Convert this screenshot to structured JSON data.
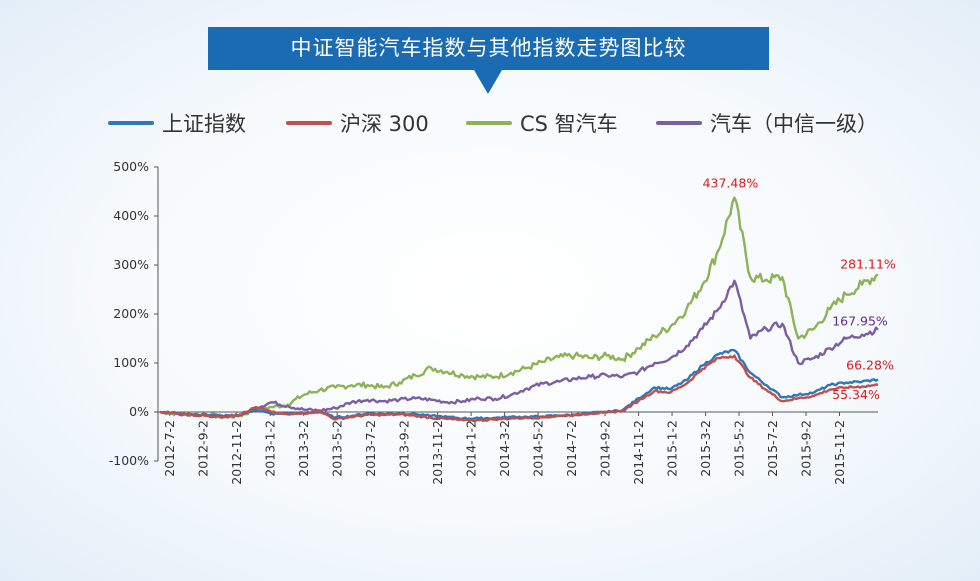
{
  "header": {
    "title": "中证智能汽车指数与其他指数走势图比较"
  },
  "colors": {
    "banner": "#1b6bb3",
    "axis": "#555555",
    "text": "#333333",
    "series": [
      "#2f77b5",
      "#c0504d",
      "#8fb256",
      "#7b5fa3"
    ]
  },
  "chart_data": {
    "type": "line",
    "title": "中证智能汽车指数与其他指数走势图比较",
    "xlabel": "",
    "ylabel": "",
    "ylim": [
      -100,
      500
    ],
    "yticks": [
      "500%",
      "400%",
      "300%",
      "200%",
      "100%",
      "0%",
      "-100%"
    ],
    "ytick_values": [
      500,
      400,
      300,
      200,
      100,
      0,
      -100
    ],
    "xticks": [
      "2012-7-2",
      "2012-9-2",
      "2012-11-2",
      "2013-1-2",
      "2013-3-2",
      "2013-5-2",
      "2013-7-2",
      "2013-9-2",
      "2013-11-2",
      "2014-1-2",
      "2014-3-2",
      "2014-5-2",
      "2014-7-2",
      "2014-9-2",
      "2014-11-2",
      "2015-1-2",
      "2015-3-2",
      "2015-5-2",
      "2015-7-2",
      "2015-9-2",
      "2015-11-2"
    ],
    "grid": false,
    "legend_position": "top",
    "series": [
      {
        "name": "上证指数",
        "points": [
          [
            0,
            0
          ],
          [
            1,
            -2
          ],
          [
            2,
            -5
          ],
          [
            3,
            -7
          ],
          [
            4,
            -9
          ],
          [
            5,
            -6
          ],
          [
            6,
            4
          ],
          [
            7,
            -4
          ],
          [
            8,
            -3
          ],
          [
            9,
            -2
          ],
          [
            10,
            0
          ],
          [
            11,
            -11
          ],
          [
            12,
            -8
          ],
          [
            13,
            -3
          ],
          [
            14,
            -4
          ],
          [
            15,
            -3
          ],
          [
            16,
            -4
          ],
          [
            17,
            -8
          ],
          [
            18,
            -10
          ],
          [
            19,
            -13
          ],
          [
            20,
            -13
          ],
          [
            21,
            -12
          ],
          [
            22,
            -10
          ],
          [
            23,
            -10
          ],
          [
            24,
            -9
          ],
          [
            25,
            -7
          ],
          [
            26,
            -6
          ],
          [
            27,
            -2
          ],
          [
            28,
            0
          ],
          [
            29,
            4
          ],
          [
            30,
            28
          ],
          [
            31,
            50
          ],
          [
            32,
            47
          ],
          [
            33,
            65
          ],
          [
            34,
            95
          ],
          [
            35,
            118
          ],
          [
            36,
            126
          ],
          [
            37,
            80
          ],
          [
            38,
            55
          ],
          [
            39,
            30
          ],
          [
            40,
            35
          ],
          [
            41,
            40
          ],
          [
            42,
            55
          ],
          [
            43,
            60
          ],
          [
            44,
            62
          ],
          [
            45,
            66.28
          ]
        ]
      },
      {
        "name": "沪深 300",
        "points": [
          [
            0,
            0
          ],
          [
            1,
            -3
          ],
          [
            2,
            -6
          ],
          [
            3,
            -8
          ],
          [
            4,
            -10
          ],
          [
            5,
            -5
          ],
          [
            6,
            10
          ],
          [
            7,
            0
          ],
          [
            8,
            -5
          ],
          [
            9,
            -3
          ],
          [
            10,
            2
          ],
          [
            11,
            -15
          ],
          [
            12,
            -10
          ],
          [
            13,
            -6
          ],
          [
            14,
            -6
          ],
          [
            15,
            -5
          ],
          [
            16,
            -8
          ],
          [
            17,
            -12
          ],
          [
            18,
            -14
          ],
          [
            19,
            -17
          ],
          [
            20,
            -17
          ],
          [
            21,
            -15
          ],
          [
            22,
            -13
          ],
          [
            23,
            -12
          ],
          [
            24,
            -11
          ],
          [
            25,
            -8
          ],
          [
            26,
            -6
          ],
          [
            27,
            -3
          ],
          [
            28,
            -1
          ],
          [
            29,
            2
          ],
          [
            30,
            23
          ],
          [
            31,
            43
          ],
          [
            32,
            40
          ],
          [
            33,
            58
          ],
          [
            34,
            88
          ],
          [
            35,
            110
          ],
          [
            36,
            115
          ],
          [
            37,
            70
          ],
          [
            38,
            45
          ],
          [
            39,
            22
          ],
          [
            40,
            28
          ],
          [
            41,
            33
          ],
          [
            42,
            46
          ],
          [
            43,
            50
          ],
          [
            44,
            52
          ],
          [
            45,
            55.34
          ]
        ]
      },
      {
        "name": "CS 智汽车",
        "points": [
          [
            0,
            0
          ],
          [
            1,
            -3
          ],
          [
            2,
            -5
          ],
          [
            3,
            -6
          ],
          [
            4,
            -10
          ],
          [
            5,
            -8
          ],
          [
            6,
            5
          ],
          [
            7,
            10
          ],
          [
            8,
            15
          ],
          [
            9,
            35
          ],
          [
            10,
            45
          ],
          [
            11,
            50
          ],
          [
            12,
            55
          ],
          [
            13,
            55
          ],
          [
            14,
            50
          ],
          [
            15,
            60
          ],
          [
            16,
            75
          ],
          [
            17,
            90
          ],
          [
            18,
            82
          ],
          [
            19,
            75
          ],
          [
            20,
            72
          ],
          [
            21,
            72
          ],
          [
            22,
            80
          ],
          [
            23,
            90
          ],
          [
            24,
            102
          ],
          [
            25,
            112
          ],
          [
            26,
            115
          ],
          [
            27,
            110
          ],
          [
            28,
            115
          ],
          [
            29,
            108
          ],
          [
            30,
            130
          ],
          [
            31,
            155
          ],
          [
            32,
            175
          ],
          [
            33,
            210
          ],
          [
            34,
            260
          ],
          [
            35,
            330
          ],
          [
            36,
            437.48
          ],
          [
            37,
            275
          ],
          [
            38,
            270
          ],
          [
            39,
            275
          ],
          [
            40,
            150
          ],
          [
            41,
            170
          ],
          [
            42,
            210
          ],
          [
            43,
            240
          ],
          [
            44,
            260
          ],
          [
            45,
            281.11
          ]
        ]
      },
      {
        "name": "汽车（中信一级）",
        "points": [
          [
            0,
            0
          ],
          [
            1,
            -3
          ],
          [
            2,
            -5
          ],
          [
            3,
            -7
          ],
          [
            4,
            -9
          ],
          [
            5,
            -6
          ],
          [
            6,
            8
          ],
          [
            7,
            20
          ],
          [
            8,
            12
          ],
          [
            9,
            5
          ],
          [
            10,
            3
          ],
          [
            11,
            8
          ],
          [
            12,
            20
          ],
          [
            13,
            25
          ],
          [
            14,
            22
          ],
          [
            15,
            25
          ],
          [
            16,
            28
          ],
          [
            17,
            25
          ],
          [
            18,
            20
          ],
          [
            19,
            22
          ],
          [
            20,
            28
          ],
          [
            21,
            27
          ],
          [
            22,
            35
          ],
          [
            23,
            48
          ],
          [
            24,
            58
          ],
          [
            25,
            62
          ],
          [
            26,
            68
          ],
          [
            27,
            72
          ],
          [
            28,
            75
          ],
          [
            29,
            72
          ],
          [
            30,
            82
          ],
          [
            31,
            100
          ],
          [
            32,
            110
          ],
          [
            33,
            135
          ],
          [
            34,
            170
          ],
          [
            35,
            210
          ],
          [
            36,
            268
          ],
          [
            37,
            150
          ],
          [
            38,
            170
          ],
          [
            39,
            180
          ],
          [
            40,
            100
          ],
          [
            41,
            110
          ],
          [
            42,
            130
          ],
          [
            43,
            150
          ],
          [
            44,
            158
          ],
          [
            45,
            167.95
          ]
        ]
      }
    ],
    "annotations": [
      {
        "text": "437.48%",
        "series": 2,
        "x": 36,
        "y": 437.48,
        "color": "#e0191b"
      },
      {
        "text": "281.11%",
        "series": 2,
        "x": 45,
        "y": 281.11,
        "color": "#e0191b"
      },
      {
        "text": "167.95%",
        "series": 3,
        "x": 45,
        "y": 167.95,
        "color": "#5e2d91"
      },
      {
        "text": "66.28%",
        "series": 0,
        "x": 45,
        "y": 66.28,
        "color": "#e0191b"
      },
      {
        "text": "55.34%",
        "series": 1,
        "x": 45,
        "y": 55.34,
        "color": "#e0191b"
      }
    ]
  }
}
